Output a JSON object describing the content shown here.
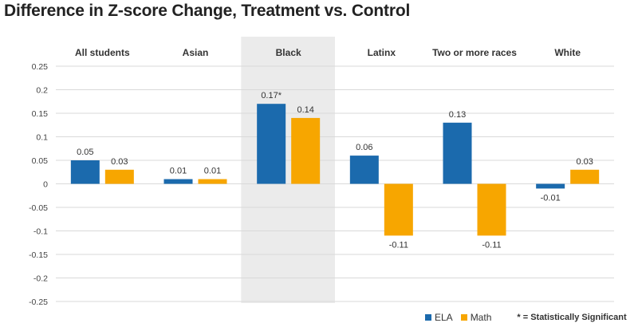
{
  "chart_data": {
    "type": "bar",
    "title": "Difference in Z-score Change, Treatment vs. Control",
    "categories": [
      "All students",
      "Asian",
      "Black",
      "Latinx",
      "Two or more races",
      "White"
    ],
    "series": [
      {
        "name": "ELA",
        "color": "#1b6aad",
        "values": [
          0.05,
          0.01,
          0.17,
          0.06,
          0.13,
          -0.01
        ],
        "labels": [
          "0.05",
          "0.01",
          "0.17*",
          "0.06",
          "0.13",
          "-0.01"
        ]
      },
      {
        "name": "Math",
        "color": "#f7a600",
        "values": [
          0.03,
          0.01,
          0.14,
          -0.11,
          -0.11,
          0.03
        ],
        "labels": [
          "0.03",
          "0.01",
          "0.14",
          "-0.11",
          "-0.11",
          "0.03"
        ]
      }
    ],
    "highlighted_category": "Black",
    "ylim": [
      -0.25,
      0.25
    ],
    "yticks": [
      0.25,
      0.2,
      0.15,
      0.1,
      0.05,
      0,
      -0.05,
      -0.1,
      -0.15,
      -0.2,
      -0.25
    ],
    "grid": true,
    "legend_position": "bottom-right",
    "note": "* = Statistically Significant"
  }
}
